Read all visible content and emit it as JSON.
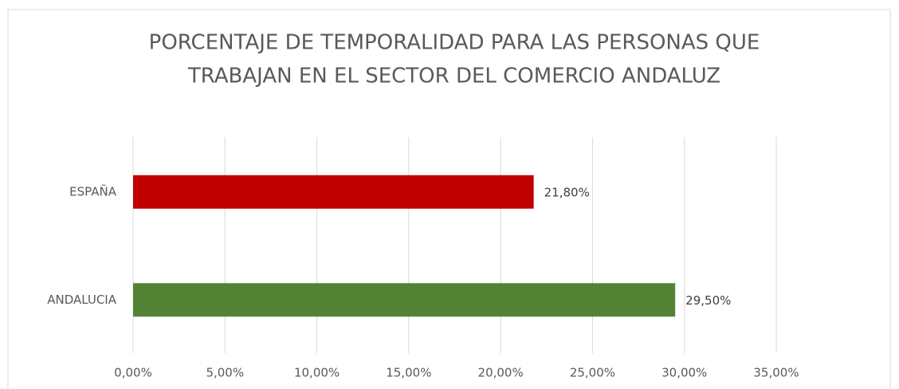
{
  "chart_data": {
    "type": "bar",
    "orientation": "horizontal",
    "title": [
      "PORCENTAJE DE TEMPORALIDAD PARA LAS PERSONAS QUE",
      "TRABAJAN EN EL SECTOR DEL COMERCIO ANDALUZ"
    ],
    "categories": [
      "ESPAÑA",
      "ANDALUCIA"
    ],
    "values": [
      21.8,
      29.5
    ],
    "value_labels": [
      "21,80%",
      "29,50%"
    ],
    "colors": [
      "#c00000",
      "#548235"
    ],
    "xlim": [
      0,
      35
    ],
    "xticks": [
      {
        "value": 0,
        "label": "0,00%"
      },
      {
        "value": 5,
        "label": "5,00%"
      },
      {
        "value": 10,
        "label": "10,00%"
      },
      {
        "value": 15,
        "label": "15,00%"
      },
      {
        "value": 20,
        "label": "20,00%"
      },
      {
        "value": 25,
        "label": "25,00%"
      },
      {
        "value": 30,
        "label": "30,00%"
      },
      {
        "value": 35,
        "label": "35,00%"
      }
    ],
    "grid": true
  }
}
